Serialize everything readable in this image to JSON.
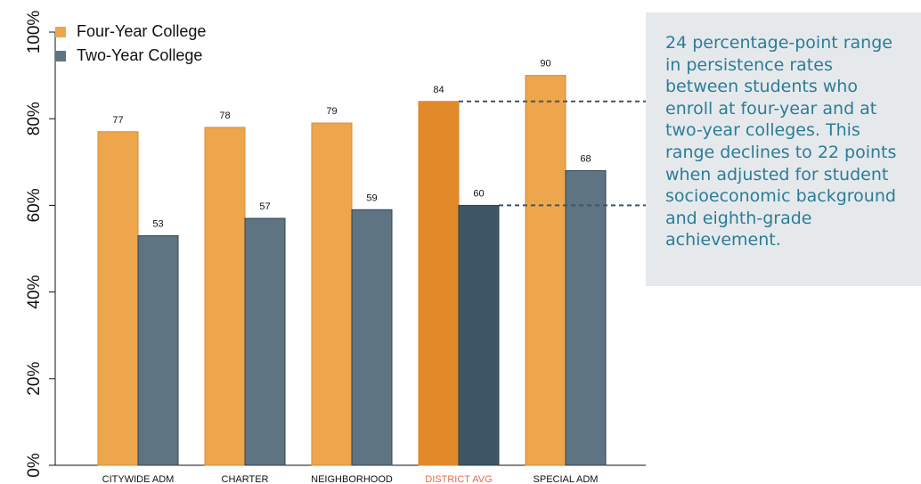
{
  "chart_data": {
    "type": "bar",
    "categories": [
      "CITYWIDE ADM",
      "CHARTER",
      "NEIGHBORHOOD",
      "DISTRICT AVG",
      "SPECIAL ADM"
    ],
    "highlight_category": "DISTRICT AVG",
    "series": [
      {
        "name": "Four-Year College",
        "values": [
          77,
          78,
          79,
          84,
          90
        ]
      },
      {
        "name": "Two-Year College",
        "values": [
          53,
          57,
          59,
          60,
          68
        ]
      }
    ],
    "ylim": [
      0,
      100
    ],
    "yticks": [
      "0%",
      "20%",
      "40%",
      "60%",
      "80%",
      "100%"
    ],
    "ytick_values": [
      0,
      20,
      40,
      60,
      80,
      100
    ],
    "legend_position": "top-left",
    "grid": false,
    "reference_lines": [
      84,
      60
    ],
    "colors": {
      "four_year": "#eda64c",
      "two_year": "#5f7482",
      "four_year_highlight": "#e2892a",
      "two_year_highlight": "#3e5565",
      "highlight_label": "#e06b4a"
    }
  },
  "callout": {
    "text": "24 percentage-point range in persistence rates between students who enroll at four-year and at two-year colleges. This range declines to 22 points when adjusted for student socioeconomic background and eighth-grade achievement."
  }
}
